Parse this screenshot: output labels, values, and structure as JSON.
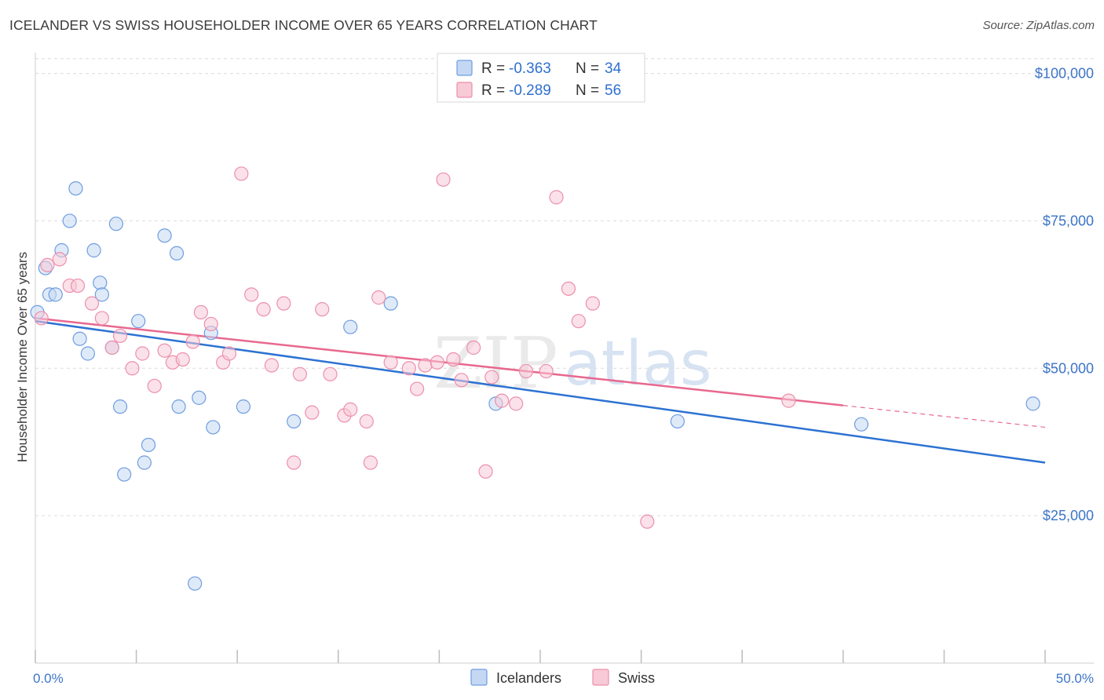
{
  "title": "ICELANDER VS SWISS HOUSEHOLDER INCOME OVER 65 YEARS CORRELATION CHART",
  "source": "Source: ZipAtlas.com",
  "watermark": {
    "zip": "ZIP",
    "atlas": "atlas"
  },
  "chart_data": {
    "type": "scatter",
    "title": "ICELANDER VS SWISS HOUSEHOLDER INCOME OVER 65 YEARS CORRELATION CHART",
    "xlabel": "",
    "ylabel": "Householder Income Over 65 years",
    "xlim": [
      0,
      50
    ],
    "ylim": [
      0,
      105000
    ],
    "x_tick_labels": [
      "0.0%",
      "50.0%"
    ],
    "y_ticks": [
      {
        "value": 25000,
        "label": "$25,000"
      },
      {
        "value": 50000,
        "label": "$50,000"
      },
      {
        "value": 75000,
        "label": "$75,000"
      },
      {
        "value": 100000,
        "label": "$100,000"
      }
    ],
    "legend_position": "top-center",
    "series": [
      {
        "name": "Icelanders",
        "color": "#6f9de0",
        "fill": "#c4d8f4",
        "line_color": "#2c72d2",
        "r_label": "R = ",
        "r": "-0.363",
        "n_label": "N = ",
        "n": "34",
        "trend": {
          "x0": 0,
          "y0": 58000,
          "x1": 50,
          "y1": 34000,
          "dashed_from": null
        },
        "points": [
          [
            0.1,
            59500
          ],
          [
            0.5,
            67000
          ],
          [
            0.7,
            62500
          ],
          [
            1.0,
            62500
          ],
          [
            1.3,
            70000
          ],
          [
            1.7,
            75000
          ],
          [
            2.0,
            80500
          ],
          [
            2.2,
            55000
          ],
          [
            2.6,
            52500
          ],
          [
            2.9,
            70000
          ],
          [
            3.2,
            64500
          ],
          [
            3.3,
            62500
          ],
          [
            3.8,
            53500
          ],
          [
            4.0,
            74500
          ],
          [
            4.2,
            43500
          ],
          [
            4.4,
            32000
          ],
          [
            5.1,
            58000
          ],
          [
            5.4,
            34000
          ],
          [
            5.6,
            37000
          ],
          [
            6.4,
            72500
          ],
          [
            7.0,
            69500
          ],
          [
            7.1,
            43500
          ],
          [
            7.9,
            13500
          ],
          [
            8.1,
            45000
          ],
          [
            8.8,
            40000
          ],
          [
            8.7,
            56000
          ],
          [
            10.3,
            43500
          ],
          [
            12.8,
            41000
          ],
          [
            15.6,
            57000
          ],
          [
            17.6,
            61000
          ],
          [
            22.8,
            44000
          ],
          [
            31.8,
            41000
          ],
          [
            40.9,
            40500
          ],
          [
            49.4,
            44000
          ]
        ]
      },
      {
        "name": "Swiss",
        "color": "#ec90ac",
        "fill": "#f8c9d7",
        "line_color": "#e8688f",
        "r_label": "R = ",
        "r": "-0.289",
        "n_label": "N = ",
        "n": "56",
        "trend": {
          "x0": 0,
          "y0": 58500,
          "x1": 50,
          "y1": 40000,
          "dashed_from": 40
        },
        "points": [
          [
            0.3,
            58500
          ],
          [
            0.6,
            67500
          ],
          [
            1.2,
            68500
          ],
          [
            1.7,
            64000
          ],
          [
            2.1,
            64000
          ],
          [
            2.8,
            61000
          ],
          [
            3.3,
            58500
          ],
          [
            3.8,
            53500
          ],
          [
            4.2,
            55500
          ],
          [
            4.8,
            50000
          ],
          [
            5.3,
            52500
          ],
          [
            5.9,
            47000
          ],
          [
            6.4,
            53000
          ],
          [
            6.8,
            51000
          ],
          [
            7.3,
            51500
          ],
          [
            7.8,
            54500
          ],
          [
            8.2,
            59500
          ],
          [
            8.7,
            57500
          ],
          [
            9.3,
            51000
          ],
          [
            9.6,
            52500
          ],
          [
            10.2,
            83000
          ],
          [
            10.7,
            62500
          ],
          [
            11.3,
            60000
          ],
          [
            11.7,
            50500
          ],
          [
            12.3,
            61000
          ],
          [
            12.8,
            34000
          ],
          [
            13.1,
            49000
          ],
          [
            13.7,
            42500
          ],
          [
            14.2,
            60000
          ],
          [
            14.6,
            49000
          ],
          [
            15.3,
            42000
          ],
          [
            15.6,
            43000
          ],
          [
            16.4,
            41000
          ],
          [
            16.6,
            34000
          ],
          [
            17.0,
            62000
          ],
          [
            17.6,
            51000
          ],
          [
            18.5,
            50000
          ],
          [
            18.9,
            46500
          ],
          [
            19.3,
            50500
          ],
          [
            19.9,
            51000
          ],
          [
            20.2,
            82000
          ],
          [
            20.7,
            51500
          ],
          [
            21.1,
            48000
          ],
          [
            21.7,
            53500
          ],
          [
            22.3,
            32500
          ],
          [
            22.6,
            48500
          ],
          [
            23.1,
            44500
          ],
          [
            23.8,
            44000
          ],
          [
            24.3,
            49500
          ],
          [
            25.3,
            49500
          ],
          [
            25.8,
            79000
          ],
          [
            26.4,
            63500
          ],
          [
            26.9,
            58000
          ],
          [
            27.6,
            61000
          ],
          [
            30.3,
            24000
          ],
          [
            37.3,
            44500
          ]
        ]
      }
    ]
  }
}
